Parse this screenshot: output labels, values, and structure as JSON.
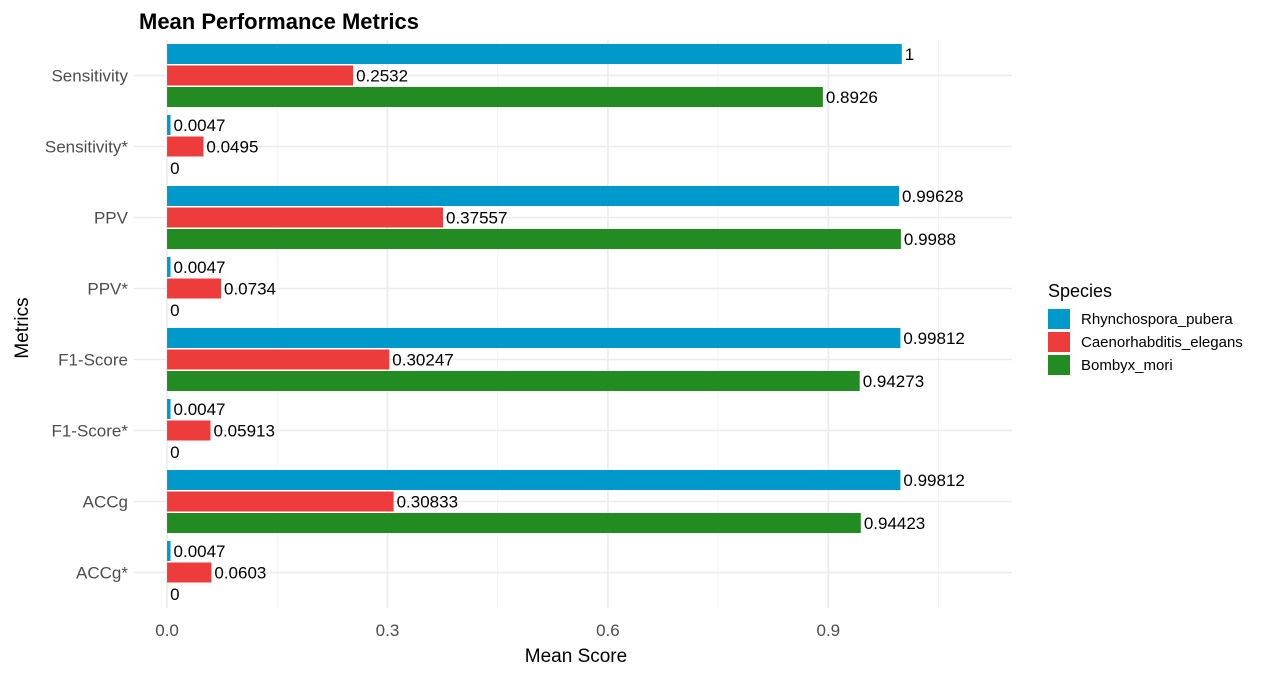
{
  "chart_data": {
    "type": "bar",
    "orientation": "horizontal",
    "title": "Mean Performance Metrics",
    "xlabel": "Mean Score",
    "ylabel": "Metrics",
    "categories": [
      "Sensitivity",
      "Sensitivity*",
      "PPV",
      "PPV*",
      "F1-Score",
      "F1-Score*",
      "ACCg",
      "ACCg*"
    ],
    "x_ticks": [
      0.0,
      0.3,
      0.6,
      0.9
    ],
    "x_tick_labels": [
      "0.0",
      "0.3",
      "0.6",
      "0.9"
    ],
    "xlim": [
      -0.045,
      1.15
    ],
    "grid": true,
    "legend_title": "Species",
    "legend_position": "right",
    "series": [
      {
        "name": "Rhynchospora_pubera",
        "color": "#0099CC",
        "values": [
          1,
          0.0047,
          0.99628,
          0.0047,
          0.99812,
          0.0047,
          0.99812,
          0.0047
        ],
        "labels": [
          "1",
          "0.0047",
          "0.99628",
          "0.0047",
          "0.99812",
          "0.0047",
          "0.99812",
          "0.0047"
        ]
      },
      {
        "name": "Caenorhabditis_elegans",
        "color": "#EE3C3C",
        "values": [
          0.2532,
          0.0495,
          0.37557,
          0.0734,
          0.30247,
          0.05913,
          0.30833,
          0.0603
        ],
        "labels": [
          "0.2532",
          "0.0495",
          "0.37557",
          "0.0734",
          "0.30247",
          "0.05913",
          "0.30833",
          "0.0603"
        ]
      },
      {
        "name": "Bombyx_mori",
        "color": "#228B22",
        "values": [
          0.8926,
          0,
          0.9988,
          0,
          0.94273,
          0,
          0.94423,
          0
        ],
        "labels": [
          "0.8926",
          "0",
          "0.9988",
          "0",
          "0.94273",
          "0",
          "0.94423",
          "0"
        ]
      }
    ]
  }
}
